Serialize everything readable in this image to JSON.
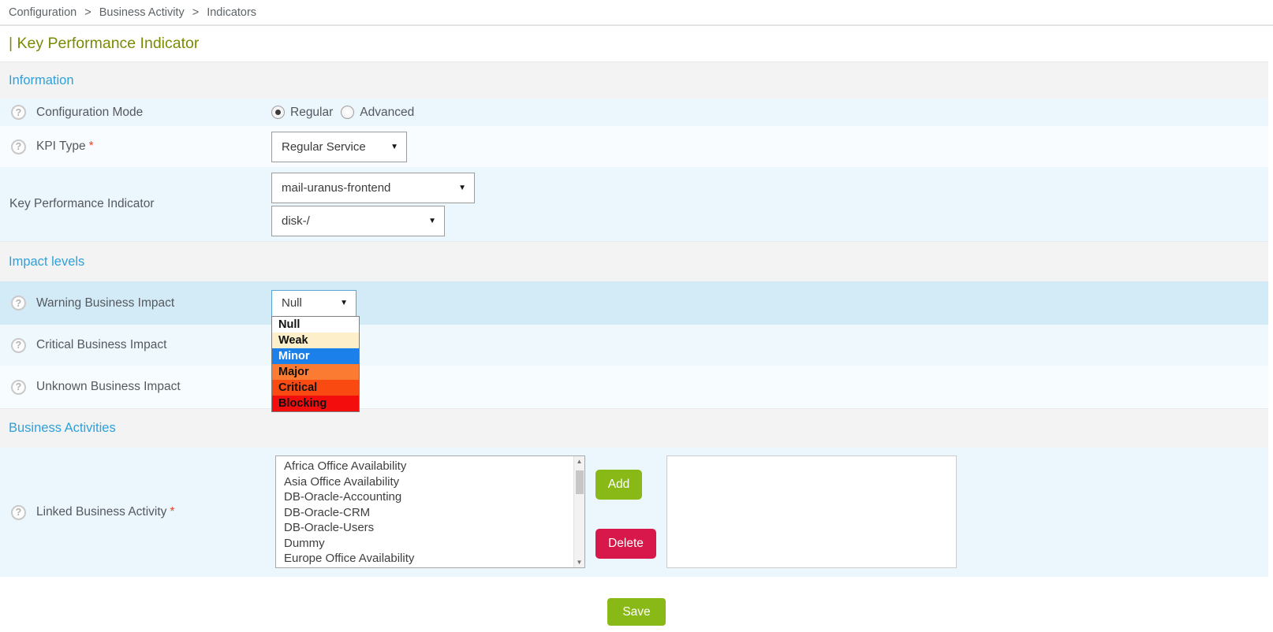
{
  "breadcrumb": {
    "items": [
      "Configuration",
      "Business Activity",
      "Indicators"
    ],
    "separator": ">"
  },
  "page_title": "| Key Performance Indicator",
  "sections": {
    "information": {
      "title": "Information"
    },
    "impact_levels": {
      "title": "Impact levels"
    },
    "business_activities": {
      "title": "Business Activities"
    }
  },
  "fields": {
    "configuration_mode": {
      "label": "Configuration Mode",
      "selected": "Regular",
      "options": [
        "Regular",
        "Advanced"
      ]
    },
    "kpi_type": {
      "label": "KPI Type",
      "required_mark": "*",
      "value": "Regular Service"
    },
    "key_performance_indicator": {
      "label": "Key Performance Indicator",
      "service_value": "mail-uranus-frontend",
      "metric_value": "disk-/"
    },
    "warning_business_impact": {
      "label": "Warning Business Impact",
      "value": "Null"
    },
    "critical_business_impact": {
      "label": "Critical Business Impact"
    },
    "unknown_business_impact": {
      "label": "Unknown Business Impact"
    },
    "linked_business_activity": {
      "label": "Linked Business Activity",
      "required_mark": "*"
    }
  },
  "impact_dropdown": {
    "options": [
      {
        "label": "Null",
        "bg": "#ffffff",
        "fg": "#111111",
        "highlighted": false
      },
      {
        "label": "Weak",
        "bg": "#fcefc9",
        "fg": "#111111",
        "highlighted": false
      },
      {
        "label": "Minor",
        "bg": "#1c80ea",
        "fg": "#ffffff",
        "highlighted": true
      },
      {
        "label": "Major",
        "bg": "#fb7b33",
        "fg": "#111111",
        "highlighted": false
      },
      {
        "label": "Critical",
        "bg": "#f94a12",
        "fg": "#111111",
        "highlighted": false
      },
      {
        "label": "Blocking",
        "bg": "#f40d0d",
        "fg": "#111111",
        "highlighted": false
      }
    ]
  },
  "available_business_activities": [
    "Africa Office Availability",
    "Asia Office Availability",
    "DB-Oracle-Accounting",
    "DB-Oracle-CRM",
    "DB-Oracle-Users",
    "Dummy",
    "Europe Office Availability"
  ],
  "selected_business_activities": [],
  "buttons": {
    "add": "Add",
    "delete": "Delete",
    "save": "Save"
  },
  "icons": {
    "help": "?",
    "dropdown_arrow": "▼",
    "scroll_up": "▲",
    "scroll_down": "▼"
  },
  "colors": {
    "section_title": "#2ea1da",
    "page_title": "#7b8a00",
    "add_green": "#88b917",
    "save_green": "#88b917",
    "delete_red": "#d8174a",
    "highlight_row": "#d2ebf7"
  }
}
